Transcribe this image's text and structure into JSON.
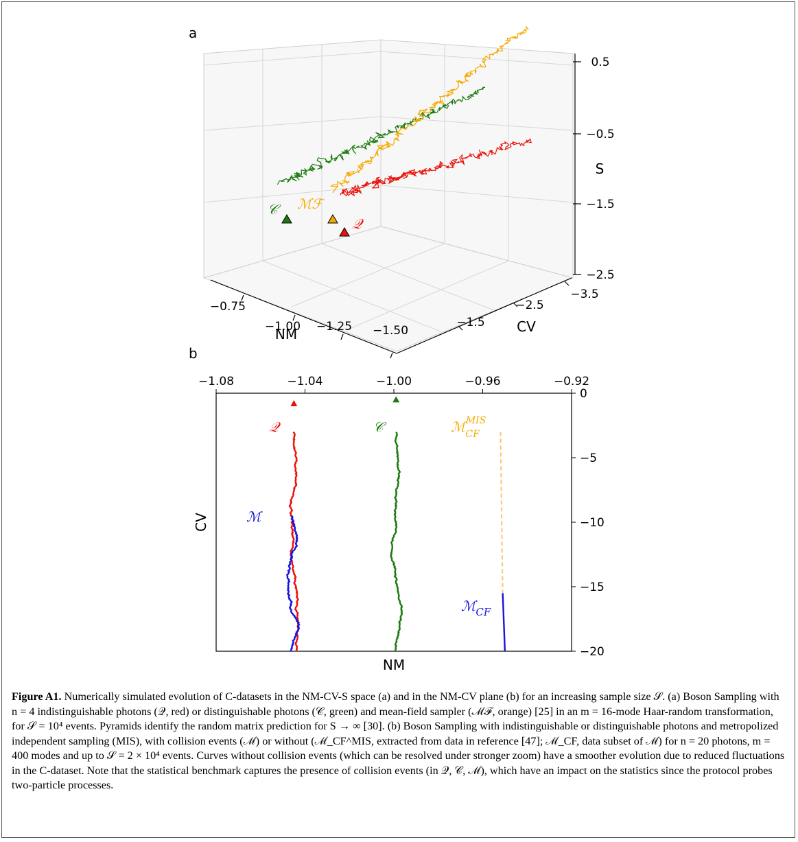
{
  "figure": {
    "panel_a_label": "a",
    "panel_b_label": "b",
    "caption_label": "Figure A1.",
    "caption_text": "Numerically simulated evolution of C-datasets in the NM-CV-S space (a) and in the NM-CV plane (b) for an increasing sample size 𝒮. (a) Boson Sampling with n = 4 indistinguishable photons (𝒬, red) or distinguishable photons (𝒞, green) and mean-field sampler (ℳℱ, orange) [25] in an m = 16-mode Haar-random transformation, for 𝒮 = 10⁴ events. Pyramids identify the random matrix prediction for S → ∞ [30]. (b) Boson Sampling with indistinguishable or distinguishable photons and metropolized independent sampling (MIS), with collision events (ℳ) or without (ℳ_CF^MIS, extracted from data in reference [47]; ℳ_CF, data subset of ℳ) for n = 20 photons, m = 400 modes and up to 𝒮 = 2 × 10⁴ events. Curves without collision events (which can be resolved under stronger zoom) have a smoother evolution due to reduced fluctuations in the C-dataset. Note that the statistical benchmark captures the presence of collision events (in 𝒬, 𝒞, ℳ), which have an impact on the statistics since the protocol probes two-particle processes."
  },
  "colors": {
    "Q": "#e8140c",
    "C": "#1c7a10",
    "MF": "#f5a900",
    "M": "#1515dc",
    "MCF_MIS": "#f8c670",
    "MCF": "#1515dc",
    "grid": "#cfcfcf"
  },
  "chart_data": [
    {
      "type": "line",
      "panel": "a",
      "projection": "3d",
      "axes": {
        "x": {
          "label": "NM",
          "ticks": [
            "−0.75",
            "−1.00",
            "−1.25",
            "−1.50"
          ],
          "range": [
            -0.6,
            -1.5
          ]
        },
        "y": {
          "label": "CV",
          "ticks": [
            "−1.5",
            "−2.5",
            "−3.5"
          ],
          "range": [
            -1.0,
            -3.5
          ]
        },
        "z": {
          "label": "S",
          "ticks": [
            "0.5",
            "−0.5",
            "−1.5",
            "−2.5"
          ],
          "range": [
            -2.5,
            0.7
          ]
        }
      },
      "grid": true,
      "series": [
        {
          "name": "𝒞",
          "color_key": "C",
          "description": "random walk trajectory"
        },
        {
          "name": "ℳℱ",
          "color_key": "MF",
          "description": "random walk trajectory"
        },
        {
          "name": "𝒬",
          "color_key": "Q",
          "description": "random walk trajectory"
        }
      ],
      "markers": [
        {
          "series": "𝒞",
          "shape": "triangle"
        },
        {
          "series": "ℳℱ",
          "shape": "triangle"
        },
        {
          "series": "𝒬",
          "shape": "triangle"
        }
      ]
    },
    {
      "type": "line",
      "panel": "b",
      "x_axis": {
        "label": "NM",
        "ticks": [
          -1.08,
          -1.04,
          -1.0,
          -0.96,
          -0.92
        ],
        "tick_labels": [
          "−1.08",
          "−1.04",
          "−1.00",
          "−0.96",
          "−0.92"
        ],
        "range": [
          -1.08,
          -0.92
        ],
        "position": "top"
      },
      "y_axis": {
        "label": "CV",
        "ticks": [
          0,
          -5,
          -10,
          -15,
          -20
        ],
        "tick_labels": [
          "0",
          "−5",
          "−10",
          "−15",
          "−20"
        ],
        "range": [
          -20,
          0
        ],
        "position": "right"
      },
      "grid": false,
      "series": [
        {
          "name": "𝒬",
          "color_key": "Q",
          "x_center": -1.045,
          "cv_range": [
            -3,
            -20
          ]
        },
        {
          "name": "𝒞",
          "color_key": "C",
          "x_center": -0.999,
          "cv_range": [
            -3,
            -20
          ]
        },
        {
          "name": "ℳ",
          "color_key": "M",
          "x_center": -1.046,
          "cv_range": [
            -9.5,
            -20
          ]
        },
        {
          "name": "ℳ_CF^MIS",
          "color_key": "MCF_MIS",
          "style": "dashed",
          "points": [
            [
              -0.952,
              -3
            ],
            [
              -0.951,
              -15.5
            ]
          ]
        },
        {
          "name": "ℳ_CF",
          "color_key": "MCF",
          "points": [
            [
              -0.951,
              -15.5
            ],
            [
              -0.95,
              -20
            ]
          ]
        }
      ],
      "markers": [
        {
          "series": "𝒬",
          "x": -1.045,
          "y": -0.8
        },
        {
          "series": "𝒞",
          "x": -0.999,
          "y": -0.5
        }
      ]
    }
  ]
}
